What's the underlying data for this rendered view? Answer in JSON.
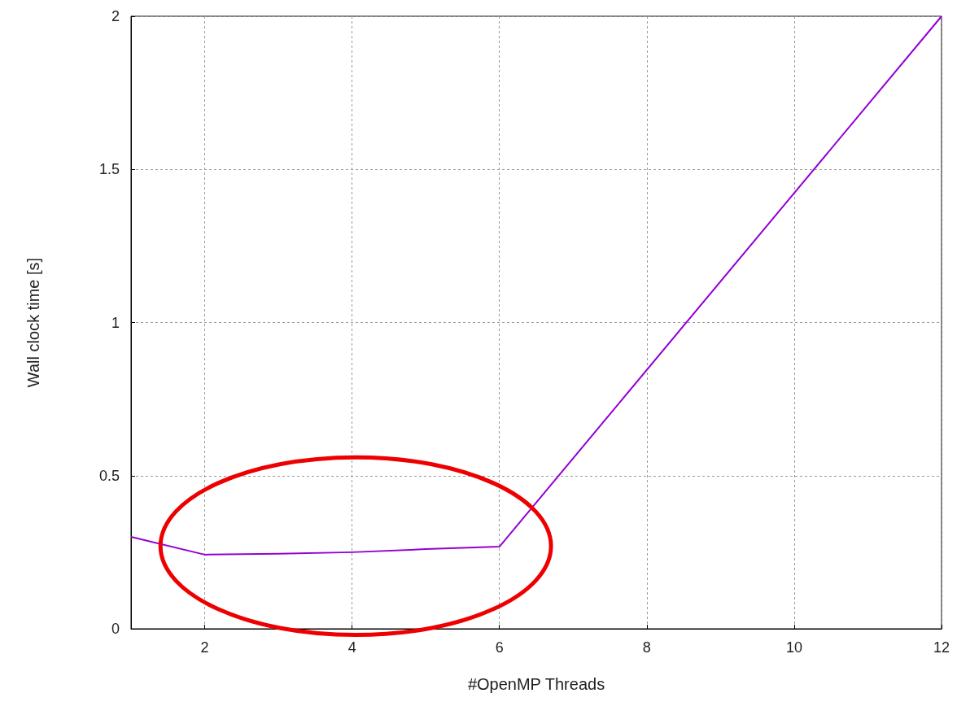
{
  "chart_data": {
    "type": "line",
    "xlabel": "#OpenMP Threads",
    "ylabel": "Wall clock time [s]",
    "x": [
      1,
      2,
      3,
      4,
      5,
      6,
      12
    ],
    "series": [
      {
        "color": "#9400d3",
        "values": [
          0.3,
          0.242,
          0.245,
          0.25,
          0.26,
          0.268,
          2.0
        ]
      }
    ],
    "xlim": [
      1,
      12
    ],
    "xticks": [
      2,
      4,
      6,
      8,
      10,
      12
    ],
    "ylim": [
      0,
      2
    ],
    "yticks": [
      0,
      0.5,
      1,
      1.5,
      2
    ],
    "grid": true,
    "marker": "none",
    "line_style": "solid"
  }
}
